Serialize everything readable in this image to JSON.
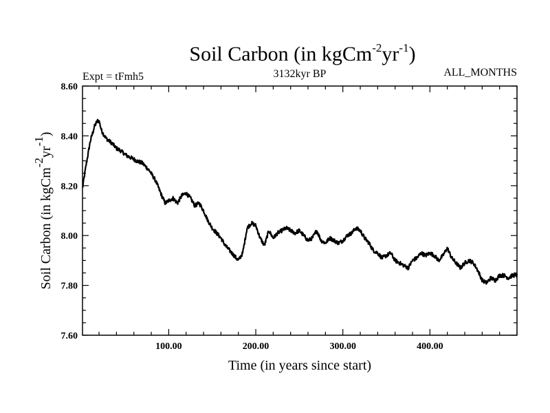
{
  "chart_data": {
    "type": "line",
    "title": {
      "base": "Soil Carbon (in kgCm",
      "exp1": "-2",
      "mid": "yr",
      "exp2": "-1",
      "end": ")"
    },
    "subtitle_left": "Expt = tFmh5",
    "subtitle_center": "3132kyr BP",
    "subtitle_right": "ALL_MONTHS",
    "xlabel": "Time (in years since start)",
    "ylabel": {
      "base": "Soil Carbon (in kgCm",
      "exp1": "-2",
      "mid": "yr",
      "exp2": "-1",
      "end": ")"
    },
    "xlim": [
      1,
      500
    ],
    "ylim": [
      7.6,
      8.6
    ],
    "xticks": [
      100,
      200,
      300,
      400
    ],
    "xtick_labels": [
      "100.00",
      "200.00",
      "300.00",
      "400.00"
    ],
    "yticks": [
      7.6,
      7.8,
      8.0,
      8.2,
      8.4,
      8.6
    ],
    "ytick_labels": [
      "7.60",
      "7.80",
      "8.00",
      "8.20",
      "8.40",
      "8.60"
    ],
    "grid": false,
    "series": [
      {
        "name": "Soil Carbon",
        "color": "#000000",
        "noise_amplitude": 0.008,
        "x": [
          1,
          5,
          10,
          15,
          18,
          20,
          23,
          28,
          35,
          40,
          45,
          52,
          58,
          63,
          70,
          78,
          85,
          92,
          96,
          100,
          105,
          110,
          115,
          120,
          125,
          130,
          135,
          140,
          145,
          150,
          155,
          160,
          165,
          170,
          175,
          180,
          185,
          190,
          195,
          200,
          205,
          210,
          215,
          220,
          225,
          230,
          235,
          240,
          245,
          250,
          255,
          260,
          265,
          270,
          275,
          280,
          285,
          290,
          295,
          300,
          305,
          310,
          315,
          320,
          325,
          330,
          335,
          340,
          345,
          350,
          355,
          360,
          365,
          370,
          375,
          380,
          385,
          390,
          395,
          400,
          405,
          410,
          415,
          420,
          425,
          430,
          435,
          440,
          445,
          450,
          455,
          460,
          465,
          470,
          475,
          480,
          485,
          490,
          495,
          500
        ],
        "values": [
          8.19,
          8.28,
          8.38,
          8.44,
          8.46,
          8.46,
          8.42,
          8.39,
          8.37,
          8.35,
          8.34,
          8.32,
          8.31,
          8.3,
          8.29,
          8.26,
          8.22,
          8.16,
          8.13,
          8.14,
          8.15,
          8.13,
          8.16,
          8.17,
          8.15,
          8.12,
          8.13,
          8.1,
          8.06,
          8.03,
          8.01,
          7.99,
          7.96,
          7.94,
          7.92,
          7.9,
          7.93,
          8.03,
          8.05,
          8.04,
          7.99,
          7.96,
          8.02,
          7.99,
          8.01,
          8.02,
          8.03,
          8.02,
          8.01,
          8.02,
          8.0,
          7.98,
          7.99,
          8.02,
          7.98,
          7.97,
          7.99,
          7.98,
          7.97,
          7.98,
          8.0,
          8.01,
          8.03,
          8.02,
          7.99,
          7.97,
          7.94,
          7.93,
          7.91,
          7.92,
          7.93,
          7.9,
          7.89,
          7.88,
          7.87,
          7.9,
          7.91,
          7.93,
          7.92,
          7.93,
          7.92,
          7.9,
          7.92,
          7.95,
          7.91,
          7.89,
          7.87,
          7.89,
          7.9,
          7.89,
          7.86,
          7.82,
          7.81,
          7.83,
          7.82,
          7.84,
          7.84,
          7.83,
          7.84,
          7.84
        ]
      }
    ]
  }
}
